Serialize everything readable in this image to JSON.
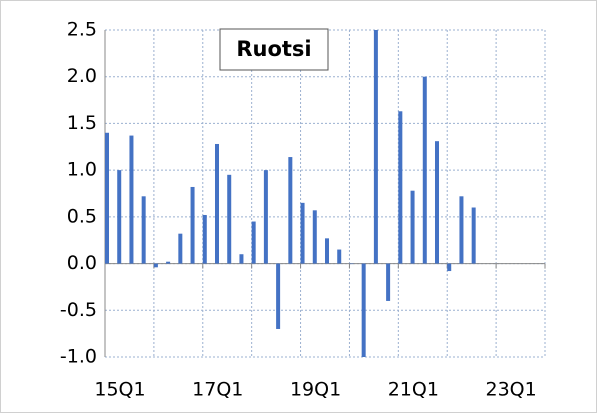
{
  "chart_data": {
    "type": "bar",
    "title": "Ruotsi",
    "categories": [
      "15Q1",
      null,
      null,
      null,
      null,
      null,
      null,
      null,
      "17Q1",
      null,
      null,
      null,
      null,
      null,
      null,
      null,
      "19Q1",
      null,
      null,
      null,
      null,
      null,
      null,
      null,
      "21Q1",
      null,
      null,
      null,
      null,
      null,
      null,
      null,
      "23Q1",
      null,
      null,
      null
    ],
    "values": [
      1.4,
      1.0,
      1.37,
      0.72,
      -0.04,
      0.02,
      0.32,
      0.82,
      0.52,
      1.28,
      0.95,
      0.1,
      0.45,
      1.0,
      -0.7,
      1.14,
      0.65,
      0.57,
      0.27,
      0.15,
      0.0,
      -1.0,
      2.5,
      -0.4,
      1.63,
      0.78,
      2.0,
      1.31,
      -0.08,
      0.72,
      0.6,
      null,
      null,
      null,
      null,
      null
    ],
    "color": "#4472c4",
    "ylim": [
      -1.0,
      2.5
    ],
    "yticks": [
      {
        "value": -1.0,
        "label": "-1.0"
      },
      -0.5,
      {
        "value": 0.0,
        "label": "0.0"
      },
      0.5,
      {
        "value": 1.0,
        "label": "1.0"
      },
      1.5,
      {
        "value": 2.0,
        "label": "2.0"
      },
      2.5
    ],
    "grid": true
  }
}
